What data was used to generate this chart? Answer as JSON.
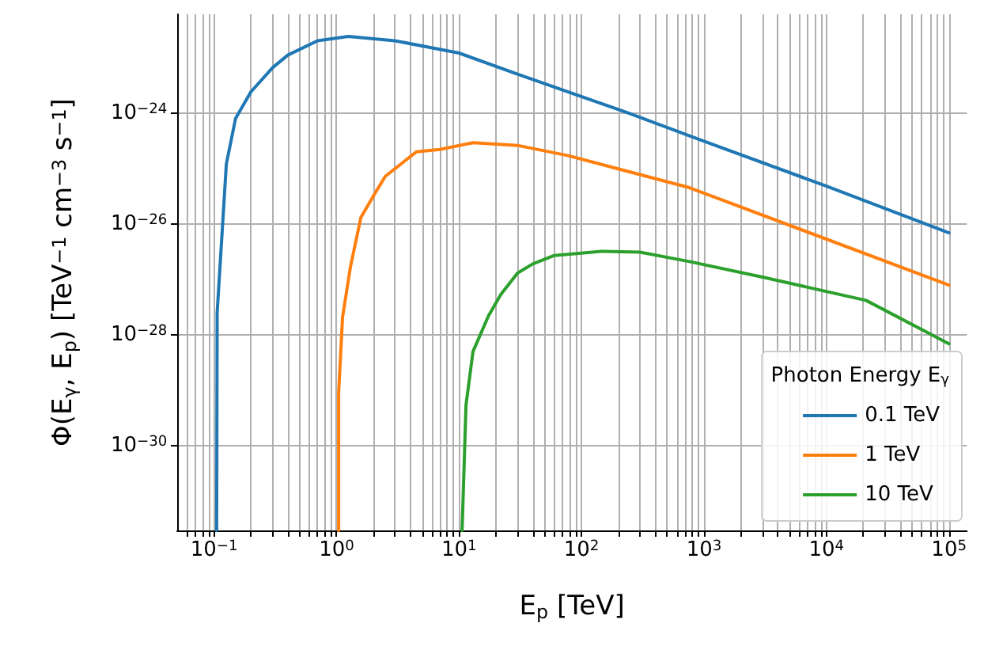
{
  "chart_data": {
    "type": "line",
    "xlabel": "E$_{p}$ [TeV]",
    "ylabel": "Φ(E$_{γ}$, E$_{p}$) [TeV$^{−1}$ cm$^{−3}$ s$^{−1}$]",
    "legend_title": "Photon Energy E$_{γ}$",
    "log": "xy",
    "grid": true,
    "legend": "bottom right",
    "xlim": [
      0.05,
      140000
    ],
    "ylim": [
      3e-32,
      6e-23
    ],
    "xticks": [
      {
        "value": 0.06,
        "label": null
      },
      {
        "value": 0.07,
        "label": null
      },
      {
        "value": 0.08,
        "label": null
      },
      {
        "value": 0.09,
        "label": null
      },
      {
        "value": 0.1,
        "label": "10$^{−1}$"
      },
      {
        "value": 0.2,
        "label": null
      },
      {
        "value": 0.3,
        "label": null
      },
      {
        "value": 0.4,
        "label": null
      },
      {
        "value": 0.5,
        "label": null
      },
      {
        "value": 0.6,
        "label": null
      },
      {
        "value": 0.7,
        "label": null
      },
      {
        "value": 0.8,
        "label": null
      },
      {
        "value": 0.9,
        "label": null
      },
      {
        "value": 1,
        "label": "10$^{0}$"
      },
      {
        "value": 2,
        "label": null
      },
      {
        "value": 3,
        "label": null
      },
      {
        "value": 4,
        "label": null
      },
      {
        "value": 5,
        "label": null
      },
      {
        "value": 6,
        "label": null
      },
      {
        "value": 7,
        "label": null
      },
      {
        "value": 8,
        "label": null
      },
      {
        "value": 9,
        "label": null
      },
      {
        "value": 10,
        "label": "10$^{1}$"
      },
      {
        "value": 20,
        "label": null
      },
      {
        "value": 30,
        "label": null
      },
      {
        "value": 40,
        "label": null
      },
      {
        "value": 50,
        "label": null
      },
      {
        "value": 60,
        "label": null
      },
      {
        "value": 70,
        "label": null
      },
      {
        "value": 80,
        "label": null
      },
      {
        "value": 90,
        "label": null
      },
      {
        "value": 100,
        "label": "10$^{2}$"
      },
      {
        "value": 200,
        "label": null
      },
      {
        "value": 300,
        "label": null
      },
      {
        "value": 400,
        "label": null
      },
      {
        "value": 500,
        "label": null
      },
      {
        "value": 600,
        "label": null
      },
      {
        "value": 700,
        "label": null
      },
      {
        "value": 800,
        "label": null
      },
      {
        "value": 900,
        "label": null
      },
      {
        "value": 1000,
        "label": "10$^{3}$"
      },
      {
        "value": 2000,
        "label": null
      },
      {
        "value": 3000,
        "label": null
      },
      {
        "value": 4000,
        "label": null
      },
      {
        "value": 5000,
        "label": null
      },
      {
        "value": 6000,
        "label": null
      },
      {
        "value": 7000,
        "label": null
      },
      {
        "value": 8000,
        "label": null
      },
      {
        "value": 9000,
        "label": null
      },
      {
        "value": 10000,
        "label": "10$^{4}$"
      },
      {
        "value": 20000,
        "label": null
      },
      {
        "value": 30000,
        "label": null
      },
      {
        "value": 40000,
        "label": null
      },
      {
        "value": 50000,
        "label": null
      },
      {
        "value": 60000,
        "label": null
      },
      {
        "value": 70000,
        "label": null
      },
      {
        "value": 80000,
        "label": null
      },
      {
        "value": 90000,
        "label": null
      },
      {
        "value": 100000,
        "label": "10$^{5}$"
      }
    ],
    "yticks": [
      {
        "value": 1e-30,
        "label": "10$^{−30}$"
      },
      {
        "value": 1e-28,
        "label": "10$^{−28}$"
      },
      {
        "value": 1e-26,
        "label": "10$^{−26}$"
      },
      {
        "value": 1e-24,
        "label": "10$^{−24}$"
      }
    ],
    "series": [
      {
        "name": "0.1 TeV",
        "color": "#1f77b4",
        "x": [
          0.105,
          0.106,
          0.126,
          0.15,
          0.2,
          0.3,
          0.4,
          0.7,
          1.25,
          3,
          10,
          30,
          240,
          1000,
          10000,
          100000
        ],
        "values": [
          3e-32,
          2.5e-28,
          1.2e-25,
          8e-25,
          2.4e-24,
          6.5e-24,
          1.1e-23,
          2e-23,
          2.4e-23,
          2e-23,
          1.2e-23,
          5e-24,
          1e-24,
          3.1e-25,
          4.8e-26,
          6.9e-27
        ]
      },
      {
        "name": "1 TeV",
        "color": "#ff7f0e",
        "x": [
          1.04,
          1.04,
          1.12,
          1.3,
          1.58,
          2,
          2.5,
          4.5,
          7,
          13,
          30,
          78,
          760,
          100000
        ],
        "values": [
          3e-32,
          9e-30,
          2.1e-28,
          1.7e-27,
          1.3e-26,
          3.2e-26,
          7.2e-26,
          2e-25,
          2.2e-25,
          2.9e-25,
          2.6e-25,
          1.7e-25,
          4.5e-26,
          7.9e-28
        ]
      },
      {
        "name": "10 TeV",
        "color": "#2ca02c",
        "x": [
          10.6,
          11.4,
          13,
          17.4,
          22,
          30,
          40,
          60,
          145,
          300,
          760,
          3000,
          21000,
          100000
        ],
        "values": [
          3e-32,
          5.4e-30,
          5e-29,
          2.2e-28,
          5.4e-28,
          1.3e-27,
          1.9e-27,
          2.7e-27,
          3.2e-27,
          3.1e-27,
          2.1e-27,
          1.1e-27,
          4.2e-28,
          6.9e-29
        ]
      }
    ]
  }
}
